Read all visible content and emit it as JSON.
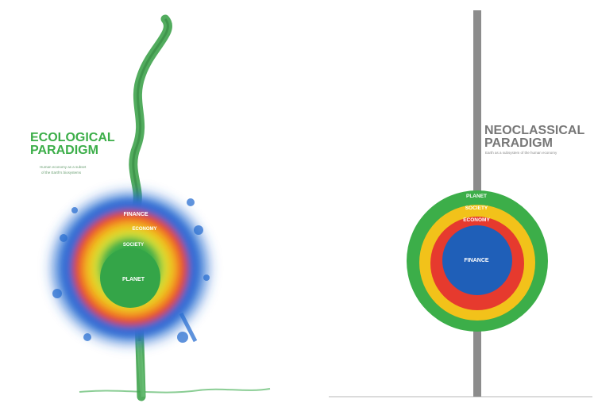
{
  "ecological": {
    "title_line1": "ECOLOGICAL",
    "title_line2": "PARADIGM",
    "subtitle_line1": "Human economy as a subset",
    "subtitle_line2": "of the Earth's biosystems",
    "rings": {
      "outer": "FINANCE",
      "second": "ECONOMY",
      "third": "SOCIETY",
      "core": "PLANET"
    },
    "colors": {
      "title": "#3cae49",
      "stem": "#3fa34d",
      "finance": "#2a6fd1",
      "economy": "#e63a2e",
      "society": "#f2c21a",
      "planet": "#3cae49"
    }
  },
  "neoclassical": {
    "title_line1": "NEOCLASSICAL",
    "title_line2": "PARADIGM",
    "subtitle": "Earth as a subsystem of the human economy",
    "rings": {
      "outer": "PLANET",
      "second": "SOCIETY",
      "third": "ECONOMY",
      "core": "FINANCE"
    },
    "colors": {
      "title": "#777777",
      "pole": "#8c8c8c",
      "planet": "#3cae49",
      "society": "#f2c21a",
      "economy": "#e63a2e",
      "finance": "#1f5fb8"
    }
  }
}
